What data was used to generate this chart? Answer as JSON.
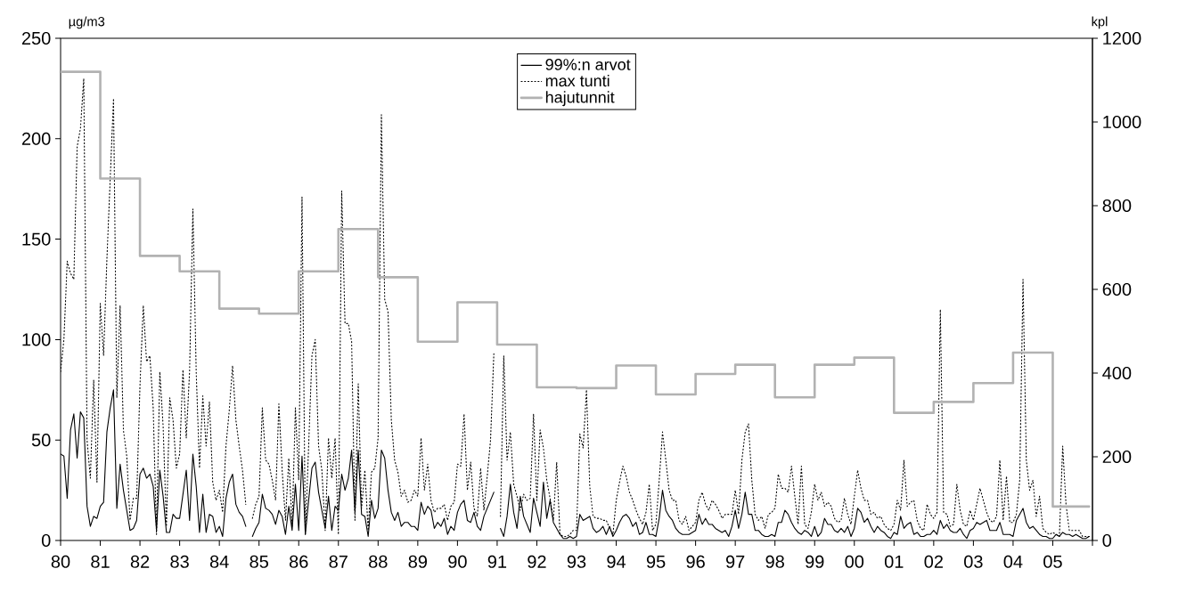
{
  "chart_data": {
    "type": "line",
    "ylabel": "µg/m3",
    "y2label": "kpl",
    "x": [
      "1980-01",
      "1980-02",
      "1980-03",
      "1980-04",
      "1980-05",
      "1980-06",
      "1980-07",
      "1980-08",
      "1980-09",
      "1980-10",
      "1980-11",
      "1980-12",
      "1981-01",
      "1981-02",
      "1981-03",
      "1981-04",
      "1981-05",
      "1981-06",
      "1981-07",
      "1981-08",
      "1981-09",
      "1981-10",
      "1981-11",
      "1981-12",
      "1982-01",
      "1982-02",
      "1982-03",
      "1982-04",
      "1982-05",
      "1982-06",
      "1982-07",
      "1982-08",
      "1982-09",
      "1982-10",
      "1982-11",
      "1982-12",
      "1983-01",
      "1983-02",
      "1983-03",
      "1983-04",
      "1983-05",
      "1983-06",
      "1983-07",
      "1983-08",
      "1983-09",
      "1983-10",
      "1983-11",
      "1983-12",
      "1984-01",
      "1984-02",
      "1984-03",
      "1984-04",
      "1984-05",
      "1984-06",
      "1984-07",
      "1984-08",
      "1984-09",
      "1984-10",
      "1984-11",
      "1984-12",
      "1985-01",
      "1985-02",
      "1985-03",
      "1985-04",
      "1985-05",
      "1985-06",
      "1985-07",
      "1985-08",
      "1985-09",
      "1985-10",
      "1985-11",
      "1985-12",
      "1986-01",
      "1986-02",
      "1986-03",
      "1986-04",
      "1986-05",
      "1986-06",
      "1986-07",
      "1986-08",
      "1986-09",
      "1986-10",
      "1986-11",
      "1986-12",
      "1987-01",
      "1987-02",
      "1987-03",
      "1987-04",
      "1987-05",
      "1987-06",
      "1987-07",
      "1987-08",
      "1987-09",
      "1987-10",
      "1987-11",
      "1987-12",
      "1988-01",
      "1988-02",
      "1988-03",
      "1988-04",
      "1988-05",
      "1988-06",
      "1988-07",
      "1988-08",
      "1988-09",
      "1988-10",
      "1988-11",
      "1988-12",
      "1989-01",
      "1989-02",
      "1989-03",
      "1989-04",
      "1989-05",
      "1989-06",
      "1989-07",
      "1989-08",
      "1989-09",
      "1989-10",
      "1989-11",
      "1989-12",
      "1990-01",
      "1990-02",
      "1990-03",
      "1990-04",
      "1990-05",
      "1990-06",
      "1990-07",
      "1990-08",
      "1990-09",
      "1990-10",
      "1990-11",
      "1990-12",
      "1991-01",
      "1991-02",
      "1991-03",
      "1991-04",
      "1991-05",
      "1991-06",
      "1991-07",
      "1991-08",
      "1991-09",
      "1991-10",
      "1991-11",
      "1991-12",
      "1992-01",
      "1992-02",
      "1992-03",
      "1992-04",
      "1992-05",
      "1992-06",
      "1992-07",
      "1992-08",
      "1992-09",
      "1992-10",
      "1992-11",
      "1992-12",
      "1993-01",
      "1993-02",
      "1993-03",
      "1993-04",
      "1993-05",
      "1993-06",
      "1993-07",
      "1993-08",
      "1993-09",
      "1993-10",
      "1993-11",
      "1993-12",
      "1994-01",
      "1994-02",
      "1994-03",
      "1994-04",
      "1994-05",
      "1994-06",
      "1994-07",
      "1994-08",
      "1994-09",
      "1994-10",
      "1994-11",
      "1994-12",
      "1995-01",
      "1995-02",
      "1995-03",
      "1995-04",
      "1995-05",
      "1995-06",
      "1995-07",
      "1995-08",
      "1995-09",
      "1995-10",
      "1995-11",
      "1995-12",
      "1996-01",
      "1996-02",
      "1996-03",
      "1996-04",
      "1996-05",
      "1996-06",
      "1996-07",
      "1996-08",
      "1996-09",
      "1996-10",
      "1996-11",
      "1996-12",
      "1997-01",
      "1997-02",
      "1997-03",
      "1997-04",
      "1997-05",
      "1997-06",
      "1997-07",
      "1997-08",
      "1997-09",
      "1997-10",
      "1997-11",
      "1997-12",
      "1998-01",
      "1998-02",
      "1998-03",
      "1998-04",
      "1998-05",
      "1998-06",
      "1998-07",
      "1998-08",
      "1998-09",
      "1998-10",
      "1998-11",
      "1998-12",
      "1999-01",
      "1999-02",
      "1999-03",
      "1999-04",
      "1999-05",
      "1999-06",
      "1999-07",
      "1999-08",
      "1999-09",
      "1999-10",
      "1999-11",
      "1999-12",
      "2000-01",
      "2000-02",
      "2000-03",
      "2000-04",
      "2000-05",
      "2000-06",
      "2000-07",
      "2000-08",
      "2000-09",
      "2000-10",
      "2000-11",
      "2000-12",
      "2001-01",
      "2001-02",
      "2001-03",
      "2001-04",
      "2001-05",
      "2001-06",
      "2001-07",
      "2001-08",
      "2001-09",
      "2001-10",
      "2001-11",
      "2001-12",
      "2002-01",
      "2002-02",
      "2002-03",
      "2002-04",
      "2002-05",
      "2002-06",
      "2002-07",
      "2002-08",
      "2002-09",
      "2002-10",
      "2002-11",
      "2002-12",
      "2003-01",
      "2003-02",
      "2003-03",
      "2003-04",
      "2003-05",
      "2003-06",
      "2003-07",
      "2003-08",
      "2003-09",
      "2003-10",
      "2003-11",
      "2003-12",
      "2004-01",
      "2004-02",
      "2004-03",
      "2004-04",
      "2004-05",
      "2004-06",
      "2004-07",
      "2004-08",
      "2004-09",
      "2004-10",
      "2004-11",
      "2004-12",
      "2005-01",
      "2005-02",
      "2005-03",
      "2005-04",
      "2005-05",
      "2005-06",
      "2005-07",
      "2005-08",
      "2005-09",
      "2005-10",
      "2005-11",
      "2005-12"
    ],
    "xlim": [
      "1980",
      "2006"
    ],
    "xticks": [
      {
        "value": "1980",
        "label": "80"
      },
      {
        "value": "1981",
        "label": "81"
      },
      {
        "value": "1982",
        "label": "82"
      },
      {
        "value": "1983",
        "label": "83"
      },
      {
        "value": "1984",
        "label": "84"
      },
      {
        "value": "1985",
        "label": "85"
      },
      {
        "value": "1986",
        "label": "86"
      },
      {
        "value": "1987",
        "label": "87"
      },
      {
        "value": "1988",
        "label": "88"
      },
      {
        "value": "1989",
        "label": "89"
      },
      {
        "value": "1990",
        "label": "90"
      },
      {
        "value": "1991",
        "label": "91"
      },
      {
        "value": "1992",
        "label": "92"
      },
      {
        "value": "1993",
        "label": "93"
      },
      {
        "value": "1994",
        "label": "94"
      },
      {
        "value": "1995",
        "label": "95"
      },
      {
        "value": "1996",
        "label": "96"
      },
      {
        "value": "1997",
        "label": "97"
      },
      {
        "value": "1998",
        "label": "98"
      },
      {
        "value": "1999",
        "label": "99"
      },
      {
        "value": "2000",
        "label": "00"
      },
      {
        "value": "2001",
        "label": "01"
      },
      {
        "value": "2002",
        "label": "02"
      },
      {
        "value": "2003",
        "label": "03"
      },
      {
        "value": "2004",
        "label": "04"
      },
      {
        "value": "2005",
        "label": "05"
      },
      {
        "value": "2006",
        "label": null
      }
    ],
    "ylim": [
      0,
      250
    ],
    "yticks": [
      0,
      50,
      100,
      150,
      200,
      250
    ],
    "y2lim": [
      0,
      1200
    ],
    "y2ticks": [
      0,
      200,
      400,
      600,
      800,
      1000,
      1200
    ],
    "legend": "top",
    "series": [
      {
        "name": "99%:n arvot",
        "color": "#000000",
        "line_style": "solid",
        "values": [
          43,
          42,
          21,
          55,
          63,
          41,
          64,
          61,
          17,
          7,
          12,
          11,
          17,
          19,
          54,
          66,
          75,
          16,
          38,
          25,
          15,
          5,
          6,
          10,
          33,
          36,
          31,
          33,
          27,
          5,
          35,
          22,
          4,
          4,
          13,
          11,
          11,
          23,
          35,
          10,
          43,
          27,
          4,
          23,
          4,
          13,
          12,
          4,
          7,
          2,
          21,
          29,
          33,
          18,
          14,
          12,
          7,
          null,
          2,
          6,
          9,
          23,
          16,
          15,
          13,
          8,
          15,
          12,
          3,
          17,
          5,
          28,
          5,
          42,
          3,
          20,
          36,
          39,
          24,
          15,
          6,
          22,
          5,
          17,
          15,
          33,
          25,
          31,
          45,
          14,
          45,
          13,
          12,
          2,
          20,
          11,
          16,
          45,
          41,
          25,
          14,
          10,
          14,
          7,
          9,
          9,
          7,
          7,
          5,
          19,
          13,
          17,
          15,
          6,
          9,
          7,
          11,
          3,
          7,
          5,
          14,
          18,
          20,
          10,
          9,
          14,
          7,
          5,
          12,
          16,
          20,
          24,
          null,
          6,
          2,
          12,
          28,
          14,
          6,
          22,
          12,
          8,
          4,
          21,
          14,
          7,
          29,
          11,
          20,
          9,
          6,
          3,
          1,
          1,
          2,
          1,
          2,
          13,
          10,
          11,
          12,
          6,
          4,
          5,
          7,
          3,
          7,
          2,
          5,
          9,
          12,
          13,
          11,
          7,
          9,
          3,
          4,
          9,
          3,
          3,
          2,
          11,
          25,
          15,
          12,
          10,
          6,
          4,
          3,
          3,
          3,
          4,
          5,
          13,
          8,
          11,
          8,
          8,
          6,
          5,
          4,
          5,
          2,
          7,
          15,
          6,
          13,
          24,
          13,
          13,
          5,
          5,
          3,
          2,
          2,
          3,
          2,
          9,
          9,
          15,
          13,
          9,
          6,
          4,
          3,
          5,
          4,
          2,
          7,
          2,
          4,
          11,
          8,
          8,
          5,
          4,
          6,
          4,
          7,
          2,
          6,
          16,
          14,
          9,
          11,
          7,
          4,
          7,
          5,
          4,
          2,
          1,
          4,
          3,
          12,
          6,
          8,
          9,
          3,
          4,
          2,
          2,
          3,
          3,
          5,
          3,
          10,
          6,
          8,
          5,
          4,
          4,
          6,
          3,
          1,
          5,
          6,
          9,
          8,
          9,
          10,
          5,
          5,
          5,
          9,
          3,
          3,
          3,
          2,
          10,
          13,
          16,
          9,
          6,
          7,
          5,
          3,
          2,
          2,
          1,
          1,
          3,
          2,
          4,
          3,
          3,
          2,
          3,
          2,
          1,
          1,
          2
        ]
      },
      {
        "name": "max tunti",
        "color": "#000000",
        "line_style": "dotted",
        "values": [
          84,
          100,
          139,
          133,
          130,
          196,
          205,
          230,
          50,
          31,
          80,
          29,
          118,
          92,
          140,
          180,
          220,
          71,
          117,
          55,
          42,
          10,
          21,
          21,
          77,
          117,
          89,
          92,
          66,
          3,
          84,
          57,
          7,
          71,
          60,
          36,
          43,
          85,
          51,
          84,
          165,
          84,
          36,
          72,
          47,
          69,
          29,
          20,
          25,
          14,
          47,
          65,
          87,
          60,
          47,
          35,
          18,
          null,
          11,
          18,
          22,
          66,
          40,
          38,
          30,
          20,
          68,
          35,
          10,
          41,
          7,
          66,
          30,
          171,
          3,
          47,
          92,
          100,
          47,
          35,
          5,
          51,
          31,
          51,
          3,
          174,
          108,
          108,
          99,
          10,
          78,
          16,
          35,
          5,
          34,
          36,
          51,
          212,
          120,
          114,
          60,
          40,
          34,
          22,
          25,
          19,
          20,
          25,
          22,
          51,
          25,
          38,
          20,
          14,
          16,
          16,
          18,
          10,
          17,
          19,
          38,
          37,
          63,
          25,
          39,
          16,
          12,
          36,
          15,
          32,
          50,
          93,
          null,
          12,
          92,
          40,
          54,
          28,
          22,
          15,
          23,
          20,
          21,
          63,
          20,
          55,
          46,
          30,
          21,
          10,
          39,
          3,
          2,
          2,
          3,
          5,
          5,
          53,
          46,
          75,
          27,
          12,
          11,
          11,
          10,
          10,
          6,
          3,
          20,
          29,
          37,
          32,
          24,
          20,
          15,
          11,
          8,
          14,
          28,
          5,
          8,
          30,
          54,
          40,
          25,
          20,
          20,
          10,
          8,
          12,
          5,
          7,
          9,
          20,
          24,
          18,
          15,
          20,
          18,
          15,
          11,
          13,
          13,
          13,
          25,
          13,
          40,
          54,
          58,
          30,
          13,
          10,
          12,
          6,
          13,
          14,
          16,
          33,
          26,
          26,
          24,
          37,
          22,
          8,
          37,
          8,
          6,
          14,
          28,
          20,
          24,
          17,
          19,
          17,
          11,
          9,
          10,
          21,
          13,
          8,
          22,
          35,
          26,
          20,
          20,
          13,
          14,
          11,
          12,
          8,
          6,
          5,
          8,
          20,
          15,
          40,
          17,
          19,
          20,
          10,
          6,
          5,
          18,
          13,
          11,
          14,
          115,
          14,
          13,
          7,
          8,
          28,
          15,
          8,
          7,
          15,
          10,
          18,
          26,
          20,
          14,
          10,
          9,
          12,
          40,
          10,
          32,
          9,
          9,
          13,
          30,
          130,
          40,
          25,
          30,
          12,
          22,
          6,
          4,
          3,
          4,
          3,
          2,
          47,
          18,
          5,
          5,
          5,
          5,
          2,
          2,
          2
        ]
      },
      {
        "name": "hajutunnit",
        "color": "#b2b2b2",
        "type": "step",
        "axis": "y2",
        "line_style": "solid",
        "x": [
          "1980",
          "1981",
          "1982",
          "1983",
          "1984",
          "1985",
          "1986",
          "1987",
          "1988",
          "1989",
          "1990",
          "1991",
          "1992",
          "1993",
          "1994",
          "1995",
          "1996",
          "1997",
          "1998",
          "1999",
          "2000",
          "2001",
          "2002",
          "2003",
          "2004",
          "2005",
          "2005-12"
        ],
        "values": [
          1120,
          865,
          680,
          643,
          554,
          542,
          643,
          744,
          629,
          475,
          569,
          468,
          366,
          364,
          418,
          349,
          398,
          420,
          342,
          420,
          437,
          305,
          331,
          376,
          449,
          81,
          81
        ]
      }
    ]
  }
}
